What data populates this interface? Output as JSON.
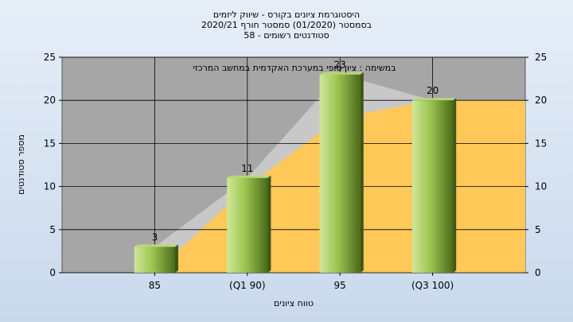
{
  "chart_data": {
    "type": "bar",
    "title_lines": [
      "היסטוגרמת ציונים בקורס - שיווק ליזמים",
      "בסמסטר  (01/2020)  סמסטר חורף  2020/21",
      "סטודנטים רשומים - 58"
    ],
    "annotation": "במשימה : ציון סופי במערכת האקדמית במחשב המרכזי",
    "xlabel": "טווח ציונים",
    "ylabel": "מספר סטודנטים",
    "categories": [
      "85",
      "(Q1 90)",
      "95",
      "(Q3 100)"
    ],
    "values": [
      3,
      11,
      23,
      20
    ],
    "data_labels": [
      "3",
      "11",
      "23",
      "20"
    ],
    "ylim": [
      0,
      25
    ],
    "yticks": [
      "0",
      "5",
      "10",
      "15",
      "20",
      "25"
    ],
    "grid": true,
    "area_series": {
      "gray": [
        3,
        11,
        23,
        20
      ],
      "orange": [
        0,
        10,
        18,
        20
      ]
    },
    "colors": {
      "plot_bg": "#a6a6a6",
      "bar_light": "#d4ec9c",
      "bar_dark": "#4e6e1c",
      "bar_top": "#b8d77a",
      "area_gray": "#c8c8c8",
      "area_orange": "#ffc859"
    }
  }
}
